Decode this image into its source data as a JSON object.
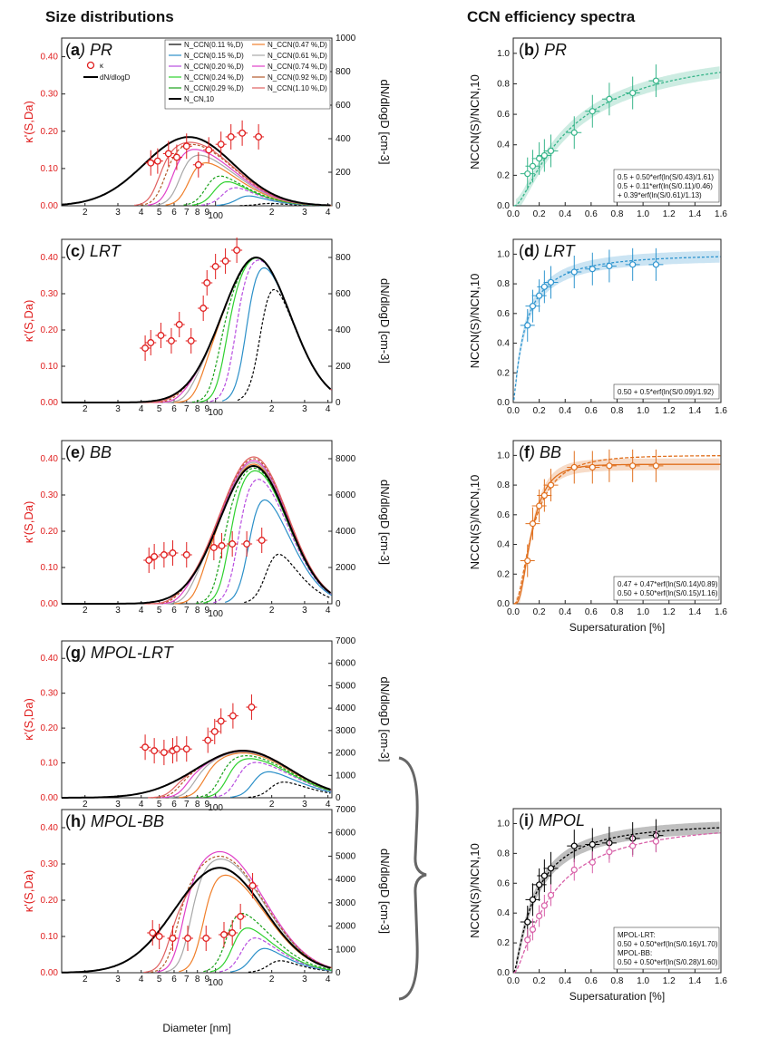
{
  "headers": {
    "left": "Size distributions",
    "right": "CCN efficiency spectra"
  },
  "colors": {
    "kappa": "#e01e1e",
    "ncn": "#000000",
    "levels": [
      "#000000",
      "#2a8fc8",
      "#b84ee0",
      "#2fd12f",
      "#1aa11a",
      "#f07f2a",
      "#a8a8a8",
      "#e040c8",
      "#b35a2a",
      "#e06060"
    ],
    "PR": "#37b58a",
    "LRT": "#2f95cf",
    "BB": "#e0701f",
    "MPOL_LRT": "#000000",
    "MPOL_BB": "#d85fa8"
  },
  "size_legend": {
    "kappa": "κ",
    "dndlogd": "dN/dlogD",
    "items": [
      "N_CCN(0.11 %,D)",
      "N_CCN(0.15 %,D)",
      "N_CCN(0.20 %,D)",
      "N_CCN(0.24 %,D)",
      "N_CCN(0.29 %,D)",
      "N_CN,10",
      "N_CCN(0.47 %,D)",
      "N_CCN(0.61 %,D)",
      "N_CCN(0.74 %,D)",
      "N_CCN(0.92 %,D)",
      "N_CCN(1.10 %,D)"
    ]
  },
  "size_axes": {
    "xlabel": "Diameter [nm]",
    "ylabel_left": "κ'(S,Da)",
    "ylabel_right": "dN/dlogD [cm-3]",
    "x_ticks": [
      "2",
      "3",
      "4",
      "5",
      "6",
      "7",
      "8",
      "9",
      "100",
      "2",
      "3",
      "4"
    ],
    "kappa_ticks": [
      "0.00",
      "0.10",
      "0.20",
      "0.30",
      "0.40"
    ]
  },
  "ccn_axes": {
    "xlabel": "Supersaturation [%]",
    "ylabel": "NCCN(S)/NCN,10",
    "x_ticks": [
      "0.0",
      "0.2",
      "0.4",
      "0.6",
      "0.8",
      "1.0",
      "1.2",
      "1.4",
      "1.6"
    ],
    "y_ticks": [
      "0.0",
      "0.2",
      "0.4",
      "0.6",
      "0.8",
      "1.0"
    ]
  },
  "panel_labels": {
    "a": {
      "letter": "a",
      "name": "PR"
    },
    "b": {
      "letter": "b",
      "name": "PR"
    },
    "c": {
      "letter": "c",
      "name": "LRT"
    },
    "d": {
      "letter": "d",
      "name": "LRT"
    },
    "e": {
      "letter": "e",
      "name": "BB"
    },
    "f": {
      "letter": "f",
      "name": "BB"
    },
    "g": {
      "letter": "g",
      "name": "MPOL-LRT"
    },
    "h": {
      "letter": "h",
      "name": "MPOL-BB"
    },
    "i": {
      "letter": "i",
      "name": "MPOL"
    }
  },
  "ccn_legends": {
    "b": [
      "0.5 + 0.50*erf(ln(S/0.43)/1.61)",
      "0.5 + 0.11*erf(ln(S/0.11)/0.46)",
      "+ 0.39*erf(ln(S/0.61)/1.13)"
    ],
    "d": [
      "0.50 + 0.5*erf(ln(S/0.09)/1.92)"
    ],
    "f": [
      "0.47 + 0.47*erf(ln(S/0.14)/0.89)",
      "0.50 + 0.50*erf(ln(S/0.15)/1.16)"
    ],
    "i": [
      "MPOL-LRT:",
      "0.50 + 0.50*erf(ln(S/0.16)/1.70)",
      "MPOL-BB:",
      "0.50 + 0.50*erf(ln(S/0.28)/1.60)"
    ]
  },
  "chart_data": [
    {
      "id": "a",
      "type": "line",
      "title": "PR",
      "xlabel": "Diameter [nm]",
      "ylabel": "κ'(S,Da)",
      "y2label": "dN/dlogD [cm-3]",
      "xscale": "log",
      "xlim": [
        15,
        420
      ],
      "ylim": [
        0,
        0.45
      ],
      "y2lim": [
        0,
        1000
      ],
      "y2_ticks": [
        "0",
        "200",
        "400",
        "600",
        "800",
        "1000"
      ],
      "ncn": {
        "peak_d": 72,
        "peak": 410,
        "sigma": 0.55
      },
      "ccn_peaks": [
        {
          "level": 0.11,
          "onset": 180,
          "peak": 95
        },
        {
          "level": 0.15,
          "onset": 135,
          "peak": 175
        },
        {
          "level": 0.2,
          "onset": 112,
          "peak": 215
        },
        {
          "level": 0.24,
          "onset": 100,
          "peak": 235
        },
        {
          "level": 0.29,
          "onset": 90,
          "peak": 250
        },
        {
          "level": 0.47,
          "onset": 72,
          "peak": 290
        },
        {
          "level": 0.61,
          "onset": 64,
          "peak": 320
        },
        {
          "level": 0.74,
          "onset": 58,
          "peak": 345
        },
        {
          "level": 0.92,
          "onset": 53,
          "peak": 370
        },
        {
          "level": 1.1,
          "onset": 49,
          "peak": 380
        }
      ],
      "kappa_points": [
        [
          45,
          0.115
        ],
        [
          49,
          0.12
        ],
        [
          56,
          0.14
        ],
        [
          62,
          0.13
        ],
        [
          70,
          0.16
        ],
        [
          81,
          0.11
        ],
        [
          92,
          0.15
        ],
        [
          107,
          0.165
        ],
        [
          121,
          0.185
        ],
        [
          139,
          0.195
        ],
        [
          170,
          0.185
        ]
      ]
    },
    {
      "id": "c",
      "type": "line",
      "title": "LRT",
      "xlabel": "Diameter [nm]",
      "ylabel": "κ'(S,Da)",
      "y2label": "dN/dlogD [cm-3]",
      "xscale": "log",
      "xlim": [
        15,
        420
      ],
      "ylim": [
        0,
        0.45
      ],
      "y2lim": [
        0,
        900
      ],
      "y2_ticks": [
        "0",
        "200",
        "400",
        "600",
        "800"
      ],
      "ncn": {
        "peak_d": 165,
        "peak": 800,
        "sigma": 0.42
      },
      "ccn_peaks": [
        {
          "level": 0.11,
          "onset": 175,
          "peak": 790
        },
        {
          "level": 0.15,
          "onset": 145,
          "peak": 795
        },
        {
          "level": 0.2,
          "onset": 125,
          "peak": 798
        },
        {
          "level": 0.24,
          "onset": 110,
          "peak": 800
        },
        {
          "level": 0.29,
          "onset": 100,
          "peak": 800
        },
        {
          "level": 0.47,
          "onset": 80,
          "peak": 800
        },
        {
          "level": 0.61,
          "onset": 70,
          "peak": 800
        },
        {
          "level": 0.74,
          "onset": 62,
          "peak": 800
        },
        {
          "level": 0.92,
          "onset": 57,
          "peak": 800
        },
        {
          "level": 1.1,
          "onset": 52,
          "peak": 800
        }
      ],
      "kappa_points": [
        [
          42,
          0.15
        ],
        [
          45,
          0.165
        ],
        [
          51,
          0.185
        ],
        [
          58,
          0.17
        ],
        [
          64,
          0.215
        ],
        [
          74,
          0.17
        ],
        [
          86,
          0.26
        ],
        [
          90,
          0.33
        ],
        [
          100,
          0.375
        ],
        [
          113,
          0.39
        ],
        [
          130,
          0.42
        ]
      ]
    },
    {
      "id": "e",
      "type": "line",
      "title": "BB",
      "xlabel": "Diameter [nm]",
      "ylabel": "κ'(S,Da)",
      "y2label": "dN/dlogD [cm-3]",
      "xscale": "log",
      "xlim": [
        15,
        420
      ],
      "ylim": [
        0,
        0.45
      ],
      "y2lim": [
        0,
        9000
      ],
      "y2_ticks": [
        "0",
        "2000",
        "4000",
        "6000",
        "8000"
      ],
      "ncn": {
        "peak_d": 160,
        "peak": 7600,
        "sigma": 0.42
      },
      "ccn_peaks": [
        {
          "level": 0.11,
          "onset": 190,
          "peak": 4100
        },
        {
          "level": 0.15,
          "onset": 150,
          "peak": 6400
        },
        {
          "level": 0.2,
          "onset": 130,
          "peak": 7100
        },
        {
          "level": 0.24,
          "onset": 115,
          "peak": 7400
        },
        {
          "level": 0.29,
          "onset": 105,
          "peak": 7500
        },
        {
          "level": 0.47,
          "onset": 80,
          "peak": 7700
        },
        {
          "level": 0.61,
          "onset": 70,
          "peak": 7800
        },
        {
          "level": 0.74,
          "onset": 63,
          "peak": 7900
        },
        {
          "level": 0.92,
          "onset": 58,
          "peak": 8000
        },
        {
          "level": 1.1,
          "onset": 55,
          "peak": 8100
        }
      ],
      "kappa_points": [
        [
          44,
          0.12
        ],
        [
          47,
          0.13
        ],
        [
          53,
          0.135
        ],
        [
          59,
          0.14
        ],
        [
          70,
          0.135
        ],
        [
          98,
          0.155
        ],
        [
          108,
          0.16
        ],
        [
          123,
          0.165
        ],
        [
          147,
          0.165
        ],
        [
          177,
          0.175
        ]
      ]
    },
    {
      "id": "g",
      "type": "line",
      "title": "MPOL-LRT",
      "xlabel": "Diameter [nm]",
      "ylabel": "κ'(S,Da)",
      "y2label": "dN/dlogD [cm-3]",
      "xscale": "log",
      "xlim": [
        15,
        420
      ],
      "ylim": [
        0,
        0.45
      ],
      "y2lim": [
        0,
        7000
      ],
      "y2_ticks": [
        "0",
        "1000",
        "2000",
        "3000",
        "4000",
        "5000",
        "6000",
        "7000"
      ],
      "ncn": {
        "peak_d": 140,
        "peak": 2100,
        "sigma": 0.58
      },
      "ccn_peaks": [
        {
          "level": 0.11,
          "onset": 200,
          "peak": 1150
        },
        {
          "level": 0.15,
          "onset": 160,
          "peak": 1450
        },
        {
          "level": 0.2,
          "onset": 130,
          "peak": 1700
        },
        {
          "level": 0.24,
          "onset": 115,
          "peak": 1800
        },
        {
          "level": 0.29,
          "onset": 105,
          "peak": 1900
        },
        {
          "level": 0.47,
          "onset": 85,
          "peak": 2000
        },
        {
          "level": 0.61,
          "onset": 75,
          "peak": 2050
        },
        {
          "level": 0.74,
          "onset": 68,
          "peak": 2080
        },
        {
          "level": 0.92,
          "onset": 62,
          "peak": 2100
        },
        {
          "level": 1.1,
          "onset": 58,
          "peak": 2120
        }
      ],
      "kappa_points": [
        [
          42,
          0.145
        ],
        [
          47,
          0.135
        ],
        [
          53,
          0.13
        ],
        [
          59,
          0.135
        ],
        [
          62,
          0.14
        ],
        [
          70,
          0.14
        ],
        [
          91,
          0.165
        ],
        [
          99,
          0.19
        ],
        [
          107,
          0.22
        ],
        [
          124,
          0.235
        ],
        [
          156,
          0.26
        ]
      ]
    },
    {
      "id": "h",
      "type": "line",
      "title": "MPOL-BB",
      "xlabel": "Diameter [nm]",
      "ylabel": "κ'(S,Da)",
      "y2label": "dN/dlogD [cm-3]",
      "xscale": "log",
      "xlim": [
        15,
        420
      ],
      "ylim": [
        0,
        0.45
      ],
      "y2lim": [
        0,
        7000
      ],
      "y2_ticks": [
        "0",
        "1000",
        "2000",
        "3000",
        "4000",
        "5000",
        "6000",
        "7000"
      ],
      "ncn": {
        "peak_d": 105,
        "peak": 4500,
        "sigma": 0.55
      },
      "ccn_peaks": [
        {
          "level": 0.11,
          "onset": 200,
          "peak": 1600
        },
        {
          "level": 0.15,
          "onset": 160,
          "peak": 2000
        },
        {
          "level": 0.2,
          "onset": 140,
          "peak": 2300
        },
        {
          "level": 0.24,
          "onset": 125,
          "peak": 2550
        },
        {
          "level": 0.29,
          "onset": 115,
          "peak": 3100
        },
        {
          "level": 0.47,
          "onset": 85,
          "peak": 4300
        },
        {
          "level": 0.61,
          "onset": 72,
          "peak": 4900
        },
        {
          "level": 0.74,
          "onset": 65,
          "peak": 5200
        },
        {
          "level": 0.92,
          "onset": 60,
          "peak": 5000
        },
        {
          "level": 1.1,
          "onset": 55,
          "peak": 4500
        }
      ],
      "kappa_points": [
        [
          46,
          0.11
        ],
        [
          50,
          0.1
        ],
        [
          59,
          0.095
        ],
        [
          71,
          0.095
        ],
        [
          89,
          0.095
        ],
        [
          111,
          0.105
        ],
        [
          123,
          0.11
        ],
        [
          136,
          0.155
        ],
        [
          158,
          0.24
        ]
      ]
    },
    {
      "id": "b",
      "type": "line",
      "title": "PR",
      "xlabel": "Supersaturation [%]",
      "ylabel": "NCCN(S)/NCN,10",
      "xlim": [
        0,
        1.6
      ],
      "ylim": [
        0,
        1.1
      ],
      "fit": {
        "a": 0.5,
        "terms": [
          [
            0.5,
            0.43,
            1.61
          ]
        ]
      },
      "points": [
        [
          0.11,
          0.21
        ],
        [
          0.15,
          0.26
        ],
        [
          0.2,
          0.31
        ],
        [
          0.24,
          0.33
        ],
        [
          0.29,
          0.36
        ],
        [
          0.47,
          0.48
        ],
        [
          0.61,
          0.62
        ],
        [
          0.74,
          0.7
        ],
        [
          0.92,
          0.74
        ],
        [
          1.1,
          0.82
        ]
      ]
    },
    {
      "id": "d",
      "type": "line",
      "title": "LRT",
      "xlabel": "Supersaturation [%]",
      "ylabel": "NCCN(S)/NCN,10",
      "xlim": [
        0,
        1.6
      ],
      "ylim": [
        0,
        1.1
      ],
      "fit": {
        "a": 0.5,
        "terms": [
          [
            0.5,
            0.09,
            1.92
          ]
        ]
      },
      "points": [
        [
          0.11,
          0.52
        ],
        [
          0.15,
          0.65
        ],
        [
          0.2,
          0.72
        ],
        [
          0.24,
          0.78
        ],
        [
          0.29,
          0.81
        ],
        [
          0.47,
          0.88
        ],
        [
          0.61,
          0.9
        ],
        [
          0.74,
          0.92
        ],
        [
          0.92,
          0.93
        ],
        [
          1.1,
          0.93
        ]
      ]
    },
    {
      "id": "f",
      "type": "line",
      "title": "BB",
      "xlabel": "Supersaturation [%]",
      "ylabel": "NCCN(S)/NCN,10",
      "xlim": [
        0,
        1.6
      ],
      "ylim": [
        0,
        1.1
      ],
      "fit": {
        "a": 0.47,
        "terms": [
          [
            0.47,
            0.14,
            0.89
          ]
        ]
      },
      "fit2": {
        "a": 0.5,
        "terms": [
          [
            0.5,
            0.15,
            1.16
          ]
        ]
      },
      "points": [
        [
          0.11,
          0.29
        ],
        [
          0.15,
          0.54
        ],
        [
          0.2,
          0.66
        ],
        [
          0.24,
          0.73
        ],
        [
          0.29,
          0.8
        ],
        [
          0.47,
          0.92
        ],
        [
          0.61,
          0.92
        ],
        [
          0.74,
          0.93
        ],
        [
          0.92,
          0.93
        ],
        [
          1.1,
          0.93
        ]
      ]
    },
    {
      "id": "i",
      "type": "line",
      "title": "MPOL",
      "xlabel": "Supersaturation [%]",
      "ylabel": "NCCN(S)/NCN,10",
      "xlim": [
        0,
        1.6
      ],
      "ylim": [
        0,
        1.1
      ],
      "fit": {
        "a": 0.5,
        "terms": [
          [
            0.5,
            0.16,
            1.7
          ]
        ]
      },
      "fit2": {
        "a": 0.5,
        "terms": [
          [
            0.5,
            0.28,
            1.6
          ]
        ]
      },
      "points": [
        [
          0.11,
          0.34
        ],
        [
          0.15,
          0.49
        ],
        [
          0.2,
          0.59
        ],
        [
          0.24,
          0.65
        ],
        [
          0.29,
          0.7
        ],
        [
          0.47,
          0.85
        ],
        [
          0.61,
          0.86
        ],
        [
          0.74,
          0.87
        ],
        [
          0.92,
          0.9
        ],
        [
          1.1,
          0.92
        ]
      ],
      "points2": [
        [
          0.11,
          0.22
        ],
        [
          0.15,
          0.29
        ],
        [
          0.2,
          0.38
        ],
        [
          0.24,
          0.45
        ],
        [
          0.29,
          0.52
        ],
        [
          0.47,
          0.69
        ],
        [
          0.61,
          0.74
        ],
        [
          0.74,
          0.81
        ],
        [
          0.92,
          0.85
        ],
        [
          1.1,
          0.88
        ]
      ]
    }
  ]
}
